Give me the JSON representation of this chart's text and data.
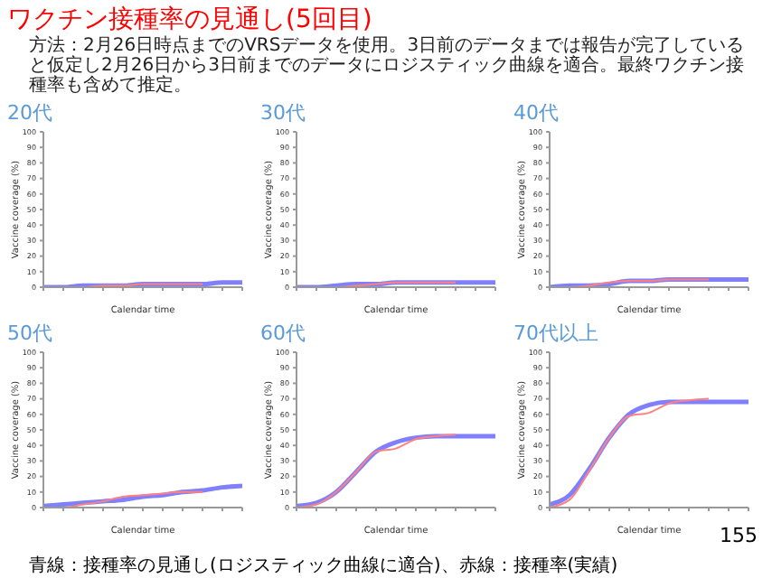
{
  "chart_data": [
    {
      "type": "other",
      "title": "ワクチン接種率の見通し(5回目)",
      "subtitle": "方法：2月26日時点までのVRSデータを使用。3日前のデータまでは報告が完了していると仮定し2月26日から3日前までのデータにロジスティック曲線を適合。最終ワクチン接種率も含めて推定。",
      "annotations": [
        "155",
        "青線：接種率の見通し(ロジスティック曲線に適合)、赤線：接種率(実績)"
      ]
    },
    {
      "type": "line",
      "title": "20代",
      "xlabel": "Calendar time",
      "ylabel": "Vaccine coverage (%)",
      "categories": [
        null,
        null,
        null,
        null,
        null,
        null,
        null,
        null,
        null,
        null,
        null
      ],
      "ylim": [
        0,
        100
      ],
      "yticks": [
        0,
        10,
        20,
        30,
        40,
        50,
        60,
        70,
        80,
        90,
        100
      ],
      "grid": false,
      "legend": false,
      "marker": "none",
      "line_style": "solid",
      "series": [
        {
          "color": "#8080ff",
          "values": [
            0,
            0,
            1,
            1,
            1,
            2,
            2,
            2,
            2,
            3,
            3
          ]
        },
        {
          "color": "#ff8080",
          "values": [
            0,
            0,
            0,
            1,
            1,
            2,
            2,
            2,
            2,
            null,
            null
          ]
        }
      ]
    },
    {
      "type": "line",
      "title": "30代",
      "xlabel": "Calendar time",
      "ylabel": "Vaccine coverage (%)",
      "categories": [
        null,
        null,
        null,
        null,
        null,
        null,
        null,
        null,
        null,
        null,
        null
      ],
      "ylim": [
        0,
        100
      ],
      "yticks": [
        0,
        10,
        20,
        30,
        40,
        50,
        60,
        70,
        80,
        90,
        100
      ],
      "grid": false,
      "legend": false,
      "marker": "none",
      "line_style": "solid",
      "series": [
        {
          "color": "#8080ff",
          "values": [
            0,
            0,
            1,
            2,
            2,
            3,
            3,
            3,
            3,
            3,
            3
          ]
        },
        {
          "color": "#ff8080",
          "values": [
            0,
            0,
            0,
            1,
            2,
            3,
            3,
            3,
            3,
            null,
            null
          ]
        }
      ]
    },
    {
      "type": "line",
      "title": "40代",
      "xlabel": "Calendar time",
      "ylabel": "Vaccine coverage (%)",
      "categories": [
        null,
        null,
        null,
        null,
        null,
        null,
        null,
        null,
        null,
        null,
        null
      ],
      "ylim": [
        0,
        100
      ],
      "yticks": [
        0,
        10,
        20,
        30,
        40,
        50,
        60,
        70,
        80,
        90,
        100
      ],
      "grid": false,
      "legend": false,
      "marker": "none",
      "line_style": "solid",
      "series": [
        {
          "color": "#8080ff",
          "values": [
            0,
            1,
            1,
            2,
            4,
            4,
            5,
            5,
            5,
            5,
            5
          ]
        },
        {
          "color": "#ff8080",
          "values": [
            0,
            0,
            1,
            3,
            4,
            4,
            5,
            5,
            5,
            null,
            null
          ]
        }
      ]
    },
    {
      "type": "line",
      "title": "50代",
      "xlabel": "Calendar time",
      "ylabel": "Vaccine coverage (%)",
      "categories": [
        null,
        null,
        null,
        null,
        null,
        null,
        null,
        null,
        null,
        null,
        null
      ],
      "ylim": [
        0,
        100
      ],
      "yticks": [
        0,
        10,
        20,
        30,
        40,
        50,
        60,
        70,
        80,
        90,
        100
      ],
      "grid": false,
      "legend": false,
      "marker": "none",
      "line_style": "solid",
      "series": [
        {
          "color": "#8080ff",
          "values": [
            1,
            2,
            3,
            4,
            5,
            7,
            8,
            10,
            11,
            13,
            14
          ]
        },
        {
          "color": "#ff8080",
          "values": [
            0,
            0,
            2,
            4,
            7,
            8,
            9,
            10,
            10,
            null,
            null
          ]
        }
      ]
    },
    {
      "type": "line",
      "title": "60代",
      "xlabel": "Calendar time",
      "ylabel": "Vaccine coverage (%)",
      "categories": [
        null,
        null,
        null,
        null,
        null,
        null,
        null,
        null,
        null,
        null,
        null
      ],
      "ylim": [
        0,
        100
      ],
      "yticks": [
        0,
        10,
        20,
        30,
        40,
        50,
        60,
        70,
        80,
        90,
        100
      ],
      "grid": false,
      "legend": false,
      "marker": "none",
      "line_style": "solid",
      "series": [
        {
          "color": "#8080ff",
          "values": [
            1,
            3,
            10,
            23,
            36,
            42,
            45,
            46,
            46,
            46,
            46
          ]
        },
        {
          "color": "#ff8080",
          "values": [
            0,
            2,
            10,
            23,
            36,
            38,
            44,
            46,
            47,
            null,
            null
          ]
        }
      ]
    },
    {
      "type": "line",
      "title": "70代以上",
      "xlabel": "Calendar time",
      "ylabel": "Vaccine coverage (%)",
      "categories": [
        null,
        null,
        null,
        null,
        null,
        null,
        null,
        null,
        null,
        null,
        null
      ],
      "ylim": [
        0,
        100
      ],
      "yticks": [
        0,
        10,
        20,
        30,
        40,
        50,
        60,
        70,
        80,
        90,
        100
      ],
      "grid": false,
      "legend": false,
      "marker": "none",
      "line_style": "solid",
      "series": [
        {
          "color": "#8080ff",
          "values": [
            2,
            8,
            25,
            45,
            60,
            66,
            68,
            68,
            68,
            68,
            68
          ]
        },
        {
          "color": "#ff8080",
          "values": [
            0,
            5,
            24,
            45,
            59,
            61,
            67,
            69,
            70,
            null,
            null
          ]
        }
      ]
    }
  ]
}
